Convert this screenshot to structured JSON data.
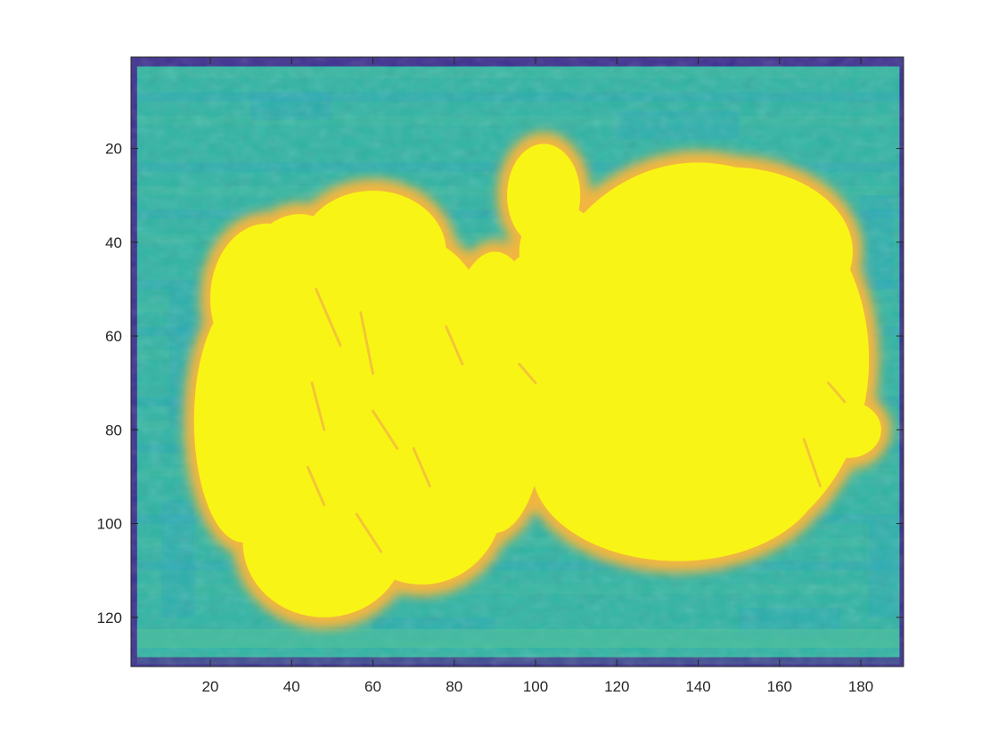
{
  "chart_data": {
    "type": "heatmap",
    "title": "",
    "xlabel": "",
    "ylabel": "",
    "xlim": [
      0.5,
      190.5
    ],
    "ylim": [
      0.5,
      130.5
    ],
    "y_reversed": true,
    "image_size": {
      "cols": 190,
      "rows": 130
    },
    "xticks": [
      20,
      40,
      60,
      80,
      100,
      120,
      140,
      160,
      180
    ],
    "yticks": [
      20,
      40,
      60,
      80,
      100,
      120
    ],
    "xtick_labels": [
      "20",
      "40",
      "60",
      "80",
      "100",
      "120",
      "140",
      "160",
      "180"
    ],
    "ytick_labels": [
      "20",
      "40",
      "60",
      "80",
      "100",
      "120"
    ],
    "colormap": "parula",
    "colors": {
      "border": "#3b2f8f",
      "background_teal": "#2fb4a4",
      "background_light": "#52c29a",
      "background_blue": "#1f9fd0",
      "edge_orange": "#f2b640",
      "blob_yellow": "#f8f516",
      "axes_box": "#262626"
    },
    "regions": [
      {
        "name": "left-lobe-a",
        "shape": "ellipse",
        "cx": 42,
        "cy": 72,
        "rx": 22,
        "ry": 38
      },
      {
        "name": "left-lobe-b",
        "shape": "ellipse",
        "cx": 34,
        "cy": 52,
        "rx": 14,
        "ry": 16
      },
      {
        "name": "left-lobe-c",
        "shape": "ellipse",
        "cx": 60,
        "cy": 42,
        "rx": 18,
        "ry": 13
      },
      {
        "name": "left-lobe-d",
        "shape": "ellipse",
        "cx": 48,
        "cy": 104,
        "rx": 20,
        "ry": 16
      },
      {
        "name": "left-lobe-e",
        "shape": "ellipse",
        "cx": 72,
        "cy": 95,
        "rx": 20,
        "ry": 18
      },
      {
        "name": "left-lobe-f",
        "shape": "ellipse",
        "cx": 70,
        "cy": 65,
        "rx": 20,
        "ry": 26
      },
      {
        "name": "left-lobe-g",
        "shape": "ellipse",
        "cx": 90,
        "cy": 72,
        "rx": 13,
        "ry": 30
      },
      {
        "name": "left-lobe-h",
        "shape": "ellipse",
        "cx": 28,
        "cy": 78,
        "rx": 12,
        "ry": 26
      },
      {
        "name": "right-body",
        "shape": "ellipse",
        "cx": 140,
        "cy": 65,
        "rx": 42,
        "ry": 42
      },
      {
        "name": "right-body-low",
        "shape": "ellipse",
        "cx": 135,
        "cy": 88,
        "rx": 36,
        "ry": 20
      },
      {
        "name": "right-body-high",
        "shape": "ellipse",
        "cx": 148,
        "cy": 42,
        "rx": 30,
        "ry": 18
      },
      {
        "name": "knob",
        "shape": "ellipse",
        "cx": 102,
        "cy": 30,
        "rx": 9,
        "ry": 11
      },
      {
        "name": "neck",
        "shape": "ellipse",
        "cx": 106,
        "cy": 42,
        "rx": 10,
        "ry": 10
      },
      {
        "name": "right-nub",
        "shape": "ellipse",
        "cx": 177,
        "cy": 80,
        "rx": 8,
        "ry": 6
      },
      {
        "name": "bridge",
        "shape": "ellipse",
        "cx": 100,
        "cy": 62,
        "rx": 12,
        "ry": 20
      }
    ]
  }
}
